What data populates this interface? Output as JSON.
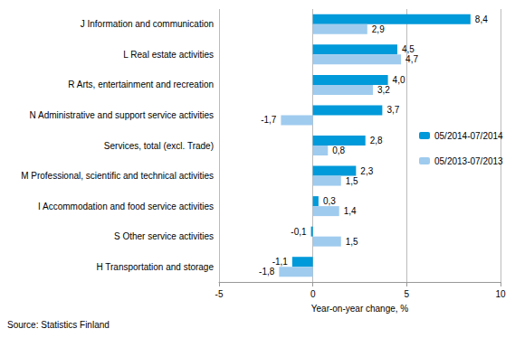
{
  "chart_data": {
    "type": "bar",
    "orientation": "horizontal",
    "categories": [
      "J Information and communication",
      "L Real estate activities",
      "R Arts, entertainment and recreation",
      "N Administrative and support service activities",
      "Services, total (excl. Trade)",
      "M Professional, scientific and technical activities",
      "I Accommodation and food service activities",
      "S Other service activities",
      "H Transportation and storage"
    ],
    "series": [
      {
        "name": "05/2014-07/2014",
        "color": "#0099d9",
        "values": [
          8.4,
          4.5,
          4.0,
          3.7,
          2.8,
          2.3,
          0.3,
          -0.1,
          -1.1
        ],
        "value_labels": [
          "8,4",
          "4,5",
          "4,0",
          "3,7",
          "2,8",
          "2,3",
          "0,3",
          "-0,1",
          "-1,1"
        ]
      },
      {
        "name": "05/2013-07/2013",
        "color": "#9fcbee",
        "values": [
          2.9,
          4.7,
          3.2,
          -1.7,
          0.8,
          1.5,
          1.4,
          1.5,
          -1.8
        ],
        "value_labels": [
          "2,9",
          "4,7",
          "3,2",
          "-1,7",
          "0,8",
          "1,5",
          "1,4",
          "1,5",
          "-1,8"
        ]
      }
    ],
    "x_label": "Year-on-year change, %",
    "xlim": [
      -5,
      10
    ],
    "xticks": [
      -5,
      0,
      5,
      10
    ],
    "grid": true,
    "legend": "right",
    "data_labels": true,
    "annotations": [
      "Source: Statistics Finland"
    ]
  }
}
